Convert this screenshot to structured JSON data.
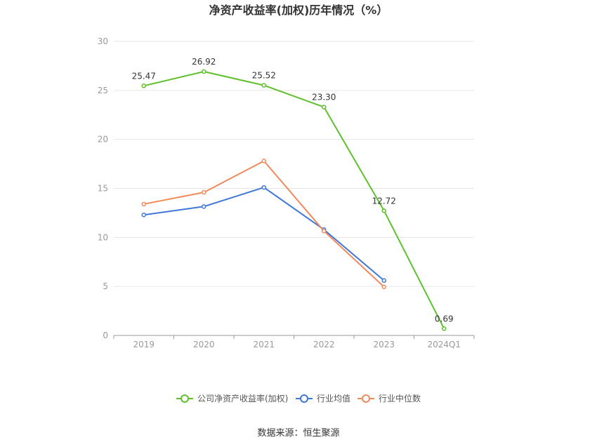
{
  "chart_data": {
    "type": "line",
    "title": "净资产收益率(加权)历年情况（%）",
    "categories": [
      "2019",
      "2020",
      "2021",
      "2022",
      "2023",
      "2024Q1"
    ],
    "ylim": [
      0,
      30
    ],
    "yticks": [
      0,
      5,
      10,
      15,
      20,
      25,
      30
    ],
    "grid": true,
    "legend_position": "bottom",
    "series": [
      {
        "name": "公司净资产收益率(加权)",
        "color": "#5ec12b",
        "values": [
          25.47,
          26.92,
          25.52,
          23.3,
          12.72,
          0.69
        ],
        "labels": [
          "25.47",
          "26.92",
          "25.52",
          "23.30",
          "12.72",
          "0.69"
        ]
      },
      {
        "name": "行业均值",
        "color": "#3f78d8",
        "values": [
          12.3,
          13.15,
          15.1,
          10.8,
          5.6,
          null
        ]
      },
      {
        "name": "行业中位数",
        "color": "#f08a5d",
        "values": [
          13.4,
          14.6,
          17.8,
          10.65,
          4.95,
          null
        ]
      }
    ]
  },
  "source_text": "数据来源：恒生聚源"
}
